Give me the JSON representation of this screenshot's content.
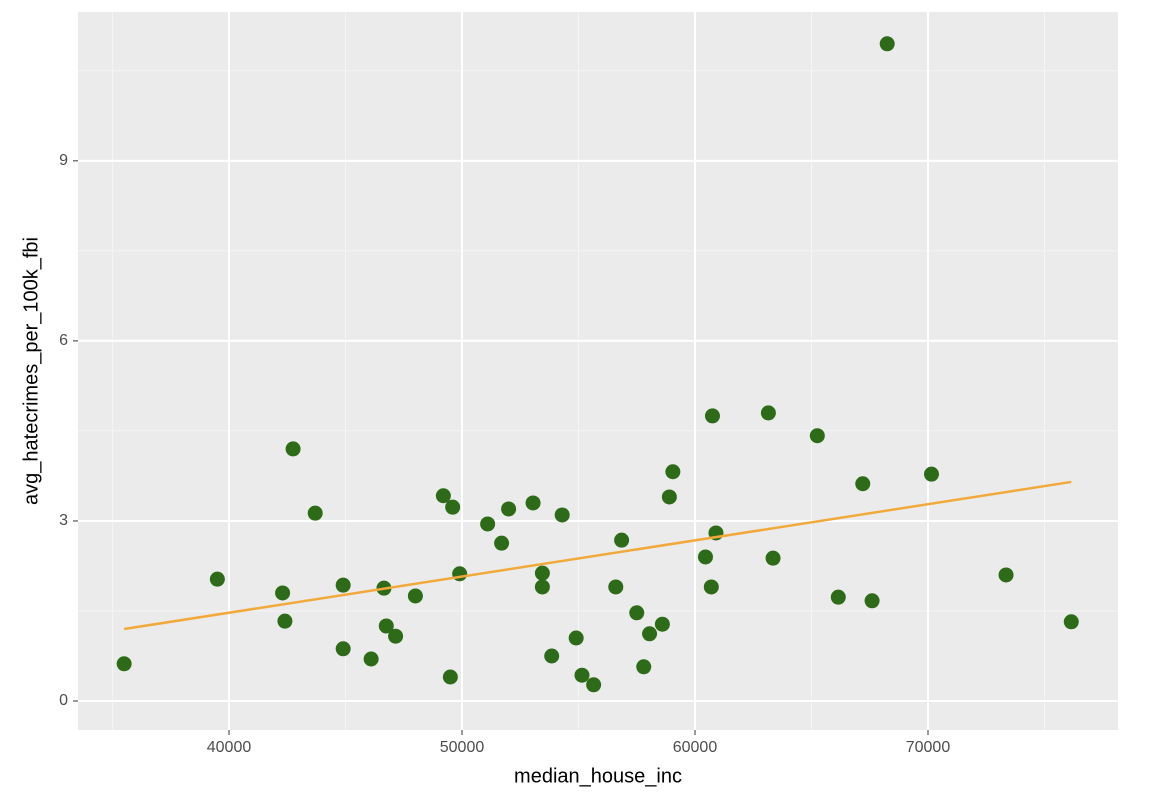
{
  "chart_data": {
    "type": "scatter",
    "x_label": "median_house_inc",
    "y_label": "avg_hatecrimes_per_100k_fbi",
    "x": [
      35500,
      39500,
      42750,
      42300,
      42400,
      43700,
      44900,
      44900,
      46100,
      46650,
      46750,
      47150,
      48000,
      49200,
      49600,
      49500,
      49900,
      51100,
      51700,
      52000,
      53050,
      53450,
      53450,
      54300,
      53850,
      54900,
      55150,
      55650,
      56600,
      56850,
      57500,
      57800,
      58050,
      58600,
      58900,
      59050,
      60450,
      60750,
      60700,
      60900,
      63150,
      63350,
      65250,
      66150,
      67200,
      67600,
      68250,
      70150,
      73350,
      76150
    ],
    "values": [
      0.62,
      2.03,
      4.2,
      1.8,
      1.33,
      3.13,
      1.93,
      0.87,
      0.7,
      1.88,
      1.25,
      1.08,
      1.75,
      3.42,
      3.23,
      0.4,
      2.12,
      2.95,
      2.63,
      3.2,
      3.3,
      2.13,
      1.9,
      3.1,
      0.75,
      1.05,
      0.43,
      0.27,
      1.9,
      2.68,
      1.47,
      0.57,
      1.12,
      1.28,
      3.4,
      3.82,
      2.4,
      4.75,
      1.9,
      2.8,
      4.8,
      2.38,
      4.42,
      1.73,
      3.62,
      1.67,
      10.95,
      3.78,
      2.1,
      1.32
    ],
    "color": "#2e6b18",
    "trend": {
      "x": [
        35500,
        76150
      ],
      "values": [
        1.2,
        3.65
      ],
      "color": "#f2a93b"
    },
    "xlim": [
      33519,
      78155
    ],
    "ylim": [
      -0.483,
      11.48
    ],
    "xticks": [
      40000,
      50000,
      60000,
      70000
    ],
    "yticks": [
      0,
      3,
      6,
      9
    ],
    "xminor": [
      35000,
      45000,
      55000,
      65000,
      75000
    ],
    "yminor": [
      1.5,
      4.5,
      7.5,
      10.5
    ],
    "grid": true
  }
}
